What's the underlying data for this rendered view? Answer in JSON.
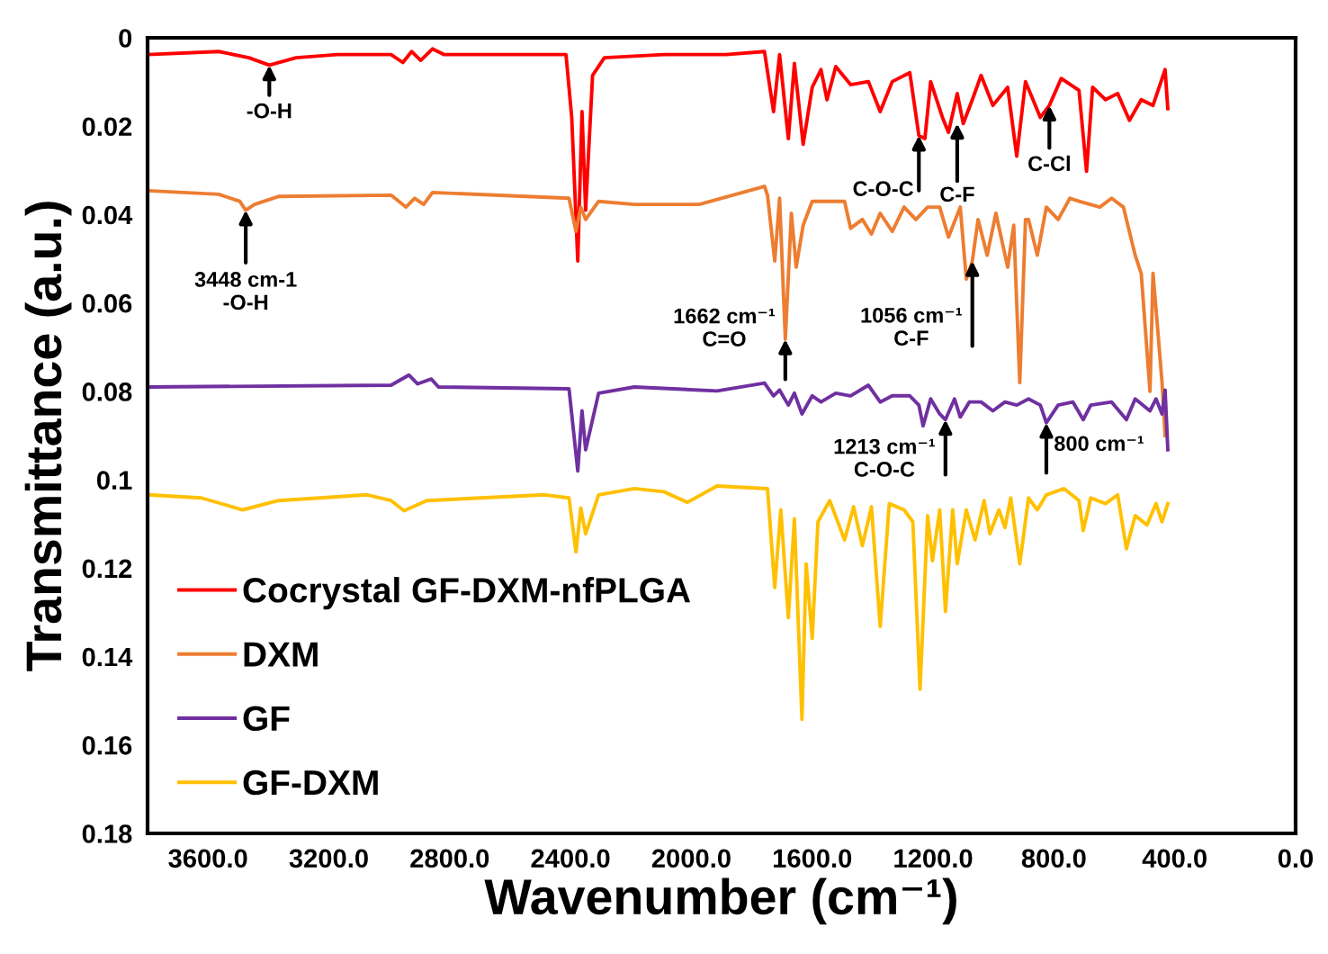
{
  "chart_data": {
    "type": "line",
    "xlabel": "Wavenumber (cm⁻¹)",
    "ylabel": "Transmittance (a.u.)",
    "xlim": [
      3800,
      0
    ],
    "ylim": [
      0.18,
      0
    ],
    "xticks": [
      {
        "value": 3600,
        "label": "3600.0"
      },
      {
        "value": 3200,
        "label": "3200.0"
      },
      {
        "value": 2800,
        "label": "2800.0"
      },
      {
        "value": 2400,
        "label": "2400.0"
      },
      {
        "value": 2000,
        "label": "2000.0"
      },
      {
        "value": 1600,
        "label": "1600.0"
      },
      {
        "value": 1200,
        "label": "1200.0"
      },
      {
        "value": 800,
        "label": "800.0"
      },
      {
        "value": 400,
        "label": "400.0"
      },
      {
        "value": 0,
        "label": "0.0"
      }
    ],
    "yticks": [
      0,
      0.02,
      0.04,
      0.06,
      0.08,
      0.1,
      0.12,
      0.14,
      0.16,
      0.18
    ],
    "grid": false,
    "legend": "bottom left",
    "marker": "none",
    "line_style": "solid",
    "series": [
      {
        "name": "Cocrystal GF-DXM-nfPLGA",
        "color": "#ff0000",
        "x": [
          3800,
          3564,
          3465,
          3397,
          3308,
          3171,
          2994,
          2955,
          2926,
          2896,
          2857,
          2818,
          2415,
          2396,
          2376,
          2362,
          2350,
          2327,
          2288,
          2091,
          1885,
          1758,
          1728,
          1708,
          1679,
          1659,
          1630,
          1600,
          1571,
          1551,
          1522,
          1473,
          1414,
          1375,
          1335,
          1277,
          1247,
          1227,
          1208,
          1169,
          1149,
          1120,
          1100,
          1070,
          1041,
          1002,
          953,
          923,
          894,
          845,
          815,
          776,
          717,
          692,
          672,
          629,
          589,
          550,
          511,
          472,
          432,
          423
        ],
        "values": [
          0.0038,
          0.0031,
          0.0045,
          0.0062,
          0.0045,
          0.0038,
          0.0038,
          0.0056,
          0.0031,
          0.0051,
          0.0025,
          0.0038,
          0.0038,
          0.018,
          0.0505,
          0.0167,
          0.039,
          0.0085,
          0.0045,
          0.0038,
          0.0038,
          0.0031,
          0.0167,
          0.0038,
          0.0228,
          0.0058,
          0.0241,
          0.0112,
          0.0072,
          0.014,
          0.0065,
          0.0106,
          0.0099,
          0.0167,
          0.0099,
          0.0079,
          0.0221,
          0.0228,
          0.0099,
          0.018,
          0.0214,
          0.0126,
          0.0194,
          0.014,
          0.0085,
          0.0153,
          0.0112,
          0.0268,
          0.0099,
          0.018,
          0.0153,
          0.0092,
          0.0119,
          0.0302,
          0.0112,
          0.014,
          0.0126,
          0.0187,
          0.014,
          0.0153,
          0.0072,
          0.016
        ]
      },
      {
        "name": "DXM",
        "color": "#ed7d31",
        "x": [
          3800,
          3564,
          3495,
          3475,
          3446,
          3367,
          2994,
          2945,
          2916,
          2886,
          2857,
          2405,
          2382,
          2366,
          2350,
          2307,
          2189,
          1974,
          1758,
          1748,
          1724,
          1708,
          1689,
          1669,
          1653,
          1630,
          1600,
          1493,
          1473,
          1434,
          1404,
          1375,
          1335,
          1296,
          1257,
          1218,
          1178,
          1149,
          1110,
          1090,
          1070,
          1051,
          1021,
          992,
          953,
          933,
          913,
          894,
          884,
          855,
          825,
          786,
          747,
          717,
          648,
          609,
          570,
          531,
          511,
          482,
          472,
          462,
          442,
          432
        ],
        "values": [
          0.0346,
          0.0354,
          0.037,
          0.039,
          0.0377,
          0.0359,
          0.0356,
          0.0383,
          0.0363,
          0.0377,
          0.035,
          0.0363,
          0.0438,
          0.0383,
          0.0411,
          0.037,
          0.0377,
          0.0377,
          0.0336,
          0.0356,
          0.0505,
          0.0363,
          0.0682,
          0.0397,
          0.0519,
          0.0424,
          0.037,
          0.037,
          0.0431,
          0.0411,
          0.0444,
          0.0397,
          0.0438,
          0.0383,
          0.0411,
          0.0383,
          0.0383,
          0.0451,
          0.0383,
          0.0546,
          0.0505,
          0.0411,
          0.0492,
          0.0397,
          0.0519,
          0.0424,
          0.078,
          0.0411,
          0.0411,
          0.0492,
          0.0383,
          0.0411,
          0.0363,
          0.037,
          0.0383,
          0.0363,
          0.0383,
          0.0492,
          0.0533,
          0.08,
          0.0533,
          0.0614,
          0.078,
          0.09
        ]
      },
      {
        "name": "GF",
        "color": "#7030a0",
        "x": [
          3800,
          2994,
          2935,
          2906,
          2861,
          2837,
          2405,
          2376,
          2362,
          2350,
          2307,
          2189,
          1915,
          1758,
          1728,
          1708,
          1679,
          1659,
          1634,
          1600,
          1571,
          1522,
          1473,
          1414,
          1375,
          1335,
          1277,
          1247,
          1233,
          1208,
          1178,
          1159,
          1129,
          1110,
          1080,
          1041,
          1002,
          962,
          923,
          884,
          845,
          825,
          786,
          737,
          703,
          678,
          609,
          560,
          531,
          482,
          462,
          442,
          432,
          423
        ],
        "values": [
          0.079,
          0.0786,
          0.0763,
          0.0783,
          0.0772,
          0.079,
          0.0794,
          0.098,
          0.0844,
          0.0932,
          0.0804,
          0.079,
          0.0799,
          0.0781,
          0.081,
          0.0797,
          0.0831,
          0.0804,
          0.0851,
          0.081,
          0.0824,
          0.0804,
          0.081,
          0.0786,
          0.0824,
          0.081,
          0.081,
          0.0831,
          0.0878,
          0.0817,
          0.0851,
          0.0864,
          0.0817,
          0.0858,
          0.0824,
          0.0824,
          0.0844,
          0.0824,
          0.0831,
          0.0817,
          0.0831,
          0.0871,
          0.0831,
          0.0824,
          0.0864,
          0.0831,
          0.0824,
          0.0864,
          0.0817,
          0.0844,
          0.0817,
          0.0851,
          0.0797,
          0.0932
        ]
      },
      {
        "name": "GF-DXM",
        "color": "#ffc000",
        "x": [
          3800,
          3622,
          3485,
          3367,
          3073,
          2994,
          2951,
          2876,
          2484,
          2405,
          2382,
          2366,
          2350,
          2307,
          2189,
          2091,
          2013,
          1915,
          1748,
          1724,
          1704,
          1679,
          1659,
          1634,
          1620,
          1600,
          1581,
          1542,
          1493,
          1463,
          1434,
          1404,
          1375,
          1345,
          1296,
          1267,
          1243,
          1218,
          1202,
          1178,
          1159,
          1135,
          1120,
          1090,
          1061,
          1031,
          1012,
          982,
          962,
          943,
          913,
          884,
          855,
          825,
          766,
          717,
          703,
          678,
          629,
          589,
          560,
          531,
          492,
          462,
          442,
          423
        ],
        "values": [
          0.1034,
          0.1041,
          0.1068,
          0.1047,
          0.1034,
          0.1047,
          0.107,
          0.1047,
          0.1034,
          0.1041,
          0.1163,
          0.1064,
          0.1122,
          0.1034,
          0.102,
          0.1027,
          0.1051,
          0.1014,
          0.102,
          0.1244,
          0.1068,
          0.1312,
          0.1088,
          0.1542,
          0.119,
          0.1359,
          0.1095,
          0.1047,
          0.1136,
          0.1061,
          0.1149,
          0.1061,
          0.1332,
          0.1054,
          0.1068,
          0.1095,
          0.1474,
          0.1081,
          0.1183,
          0.1068,
          0.1298,
          0.1068,
          0.119,
          0.1068,
          0.1136,
          0.1047,
          0.1122,
          0.1068,
          0.1108,
          0.1041,
          0.119,
          0.1041,
          0.1068,
          0.1034,
          0.102,
          0.1047,
          0.1115,
          0.1041,
          0.1054,
          0.1034,
          0.1156,
          0.1081,
          0.1102,
          0.1054,
          0.1095,
          0.1054
        ]
      }
    ],
    "annotations": [
      {
        "text": "-O-H",
        "x": 3397,
        "y": 0.0062
      },
      {
        "text": "3448 cm-1\n-O-H",
        "x": 3475,
        "y": 0.039
      },
      {
        "text": "C-O-C",
        "x": 1247,
        "y": 0.0221
      },
      {
        "text": "C-F",
        "x": 1120,
        "y": 0.0194
      },
      {
        "text": "C-Cl",
        "x": 815,
        "y": 0.0153
      },
      {
        "text": "1662 cm⁻¹\nC=O",
        "x": 1689,
        "y": 0.0682
      },
      {
        "text": "1056 cm⁻¹\nC-F",
        "x": 1070,
        "y": 0.0505
      },
      {
        "text": "1213 cm⁻¹\nC-O-C",
        "x": 1159,
        "y": 0.0864
      },
      {
        "text": "800 cm⁻¹",
        "x": 825,
        "y": 0.0871
      }
    ]
  }
}
